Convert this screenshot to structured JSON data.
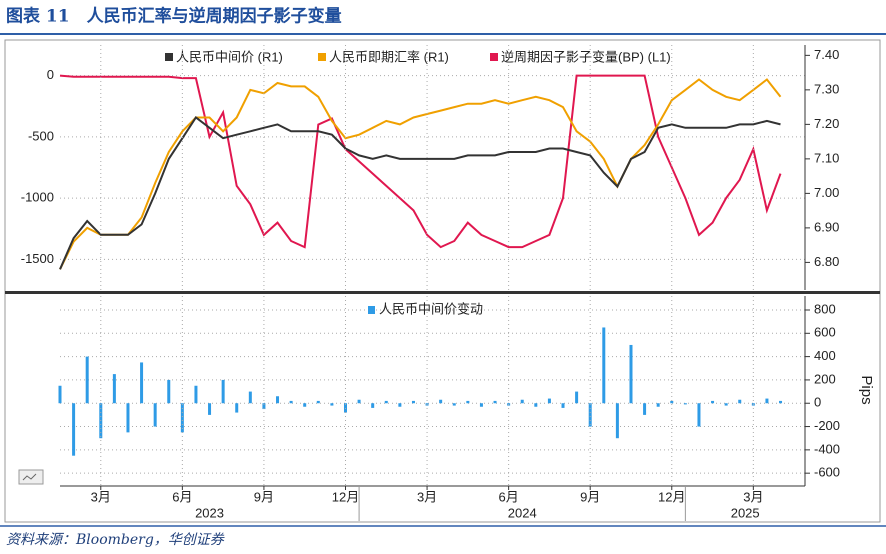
{
  "header": {
    "title": "图表 11　人民币汇率与逆周期因子影子变量"
  },
  "chart_data": [
    {
      "type": "line",
      "x": [
        1,
        1.5,
        2,
        2.5,
        3,
        3.5,
        4,
        4.5,
        5,
        5.5,
        6,
        6.5,
        7,
        7.5,
        8,
        8.5,
        9,
        9.5,
        10,
        10.5,
        11,
        11.5,
        12,
        12.5,
        13,
        13.5,
        14,
        14.5,
        15,
        15.5,
        16,
        16.5,
        17,
        17.5,
        18,
        18.5,
        19,
        19.5,
        20,
        20.5,
        21,
        21.5,
        22,
        22.5,
        23,
        23.5,
        24,
        24.5,
        25,
        25.5,
        26,
        26.5,
        27,
        27.5
      ],
      "xlim": [
        1,
        28.4
      ],
      "ylim": [
        -1750,
        250
      ],
      "yticks": [
        0,
        -500,
        -1000,
        -1500
      ],
      "y2lim": [
        6.72,
        7.43
      ],
      "y2ticks": [
        {
          "value": 6.8,
          "label": "6.80"
        },
        {
          "value": 6.9,
          "label": "6.90"
        },
        {
          "value": 7.0,
          "label": "7.00"
        },
        {
          "value": 7.1,
          "label": "7.10"
        },
        {
          "value": 7.2,
          "label": "7.20"
        },
        {
          "value": 7.3,
          "label": "7.30"
        },
        {
          "value": 7.4,
          "label": "7.40"
        }
      ],
      "grid": true,
      "series": [
        {
          "name": "人民币中间价 (R1)",
          "color": "#333333",
          "axis": "y2",
          "values": [
            6.78,
            6.87,
            6.92,
            6.88,
            6.88,
            6.88,
            6.91,
            7.0,
            7.1,
            7.16,
            7.22,
            7.19,
            7.16,
            7.17,
            7.18,
            7.19,
            7.2,
            7.18,
            7.18,
            7.18,
            7.17,
            7.13,
            7.11,
            7.1,
            7.11,
            7.1,
            7.1,
            7.1,
            7.1,
            7.1,
            7.11,
            7.11,
            7.11,
            7.12,
            7.12,
            7.12,
            7.13,
            7.13,
            7.12,
            7.11,
            7.06,
            7.02,
            7.1,
            7.12,
            7.19,
            7.2,
            7.19,
            7.19,
            7.19,
            7.19,
            7.2,
            7.2,
            7.21,
            7.2
          ]
        },
        {
          "name": "人民币即期汇率 (R1)",
          "color": "#f0a000",
          "axis": "y2",
          "values": [
            6.78,
            6.86,
            6.9,
            6.88,
            6.88,
            6.88,
            6.93,
            7.03,
            7.12,
            7.18,
            7.22,
            7.22,
            7.18,
            7.22,
            7.3,
            7.29,
            7.32,
            7.31,
            7.31,
            7.28,
            7.21,
            7.16,
            7.17,
            7.19,
            7.21,
            7.2,
            7.22,
            7.23,
            7.24,
            7.25,
            7.26,
            7.26,
            7.27,
            7.26,
            7.27,
            7.28,
            7.27,
            7.25,
            7.18,
            7.15,
            7.1,
            7.02,
            7.1,
            7.14,
            7.2,
            7.27,
            7.3,
            7.33,
            7.3,
            7.28,
            7.27,
            7.3,
            7.33,
            7.28
          ]
        },
        {
          "name": "逆周期因子影子变量(BP) (L1)",
          "color": "#e0174f",
          "axis": "y",
          "values": [
            0,
            -10,
            -10,
            -10,
            -10,
            -10,
            -10,
            -10,
            -10,
            -20,
            -20,
            -500,
            -300,
            -900,
            -1050,
            -1300,
            -1200,
            -1350,
            -1400,
            -400,
            -350,
            -600,
            -700,
            -800,
            -900,
            -1000,
            -1100,
            -1300,
            -1400,
            -1350,
            -1200,
            -1300,
            -1350,
            -1400,
            -1400,
            -1350,
            -1300,
            -1000,
            0,
            0,
            0,
            0,
            0,
            0,
            -500,
            -750,
            -1000,
            -1300,
            -1200,
            -1000,
            -850,
            -600,
            -1100,
            -800
          ]
        }
      ]
    },
    {
      "type": "bar",
      "x": [
        1,
        1.5,
        2,
        2.5,
        3,
        3.5,
        4,
        4.5,
        5,
        5.5,
        6,
        6.5,
        7,
        7.5,
        8,
        8.5,
        9,
        9.5,
        10,
        10.5,
        11,
        11.5,
        12,
        12.5,
        13,
        13.5,
        14,
        14.5,
        15,
        15.5,
        16,
        16.5,
        17,
        17.5,
        18,
        18.5,
        19,
        19.5,
        20,
        20.5,
        21,
        21.5,
        22,
        22.5,
        23,
        23.5,
        24,
        24.5,
        25,
        25.5,
        26,
        26.5,
        27,
        27.5
      ],
      "xlim": [
        1,
        28.4
      ],
      "ylim": [
        -710,
        920
      ],
      "yticks": [
        -600,
        -400,
        -200,
        0,
        200,
        400,
        600,
        800
      ],
      "y_label": "Pips",
      "grid": true,
      "series": [
        {
          "name": "人民币中间价变动",
          "color": "#2e9be6",
          "values": [
            150,
            -450,
            400,
            -300,
            250,
            -250,
            350,
            -200,
            200,
            -250,
            150,
            -100,
            200,
            -80,
            100,
            -50,
            60,
            20,
            -30,
            20,
            -20,
            -80,
            30,
            -40,
            20,
            -30,
            20,
            -20,
            30,
            -20,
            20,
            -30,
            20,
            -20,
            30,
            -30,
            40,
            -40,
            100,
            -200,
            650,
            -300,
            500,
            -100,
            -30,
            20,
            -10,
            -200,
            20,
            -20,
            30,
            -20,
            40,
            20
          ]
        }
      ],
      "xticks": [
        {
          "value": 2.5,
          "label": "3月"
        },
        {
          "value": 5.5,
          "label": "6月"
        },
        {
          "value": 8.5,
          "label": "9月"
        },
        {
          "value": 11.5,
          "label": "12月"
        },
        {
          "value": 14.5,
          "label": "3月"
        },
        {
          "value": 17.5,
          "label": "6月"
        },
        {
          "value": 20.5,
          "label": "9月"
        },
        {
          "value": 23.5,
          "label": "12月"
        },
        {
          "value": 26.5,
          "label": "3月"
        }
      ],
      "year_ticks": [
        {
          "value": 0,
          "label": "2023"
        },
        {
          "value": 12,
          "label": "2024"
        },
        {
          "value": 24,
          "label": "2025"
        }
      ]
    }
  ],
  "source": "资料来源：Bloomberg，华创证券"
}
